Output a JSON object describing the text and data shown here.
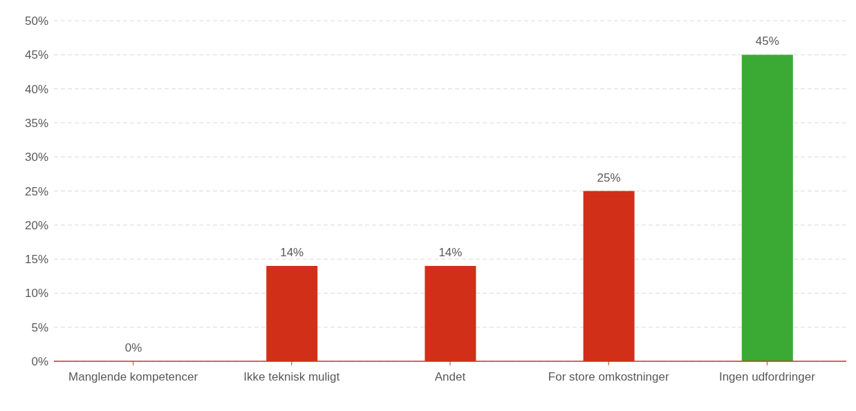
{
  "chart_data": {
    "type": "bar",
    "categories": [
      "Manglende kompetencer",
      "Ikke teknisk muligt",
      "Andet",
      "For store omkostninger",
      "Ingen udfordringer"
    ],
    "values": [
      0,
      14,
      14,
      25,
      45
    ],
    "colors": [
      "#d22f18",
      "#d22f18",
      "#d22f18",
      "#d22f18",
      "#3aaa35"
    ],
    "value_labels": [
      "0%",
      "14%",
      "14%",
      "25%",
      "45%"
    ],
    "ylim": [
      0,
      50
    ],
    "yticks": [
      {
        "value": 0,
        "label": "0%"
      },
      {
        "value": 5,
        "label": "5%"
      },
      {
        "value": 10,
        "label": "10%"
      },
      {
        "value": 15,
        "label": "15%"
      },
      {
        "value": 20,
        "label": "20%"
      },
      {
        "value": 25,
        "label": "25%"
      },
      {
        "value": 30,
        "label": "30%"
      },
      {
        "value": 35,
        "label": "35%"
      },
      {
        "value": 40,
        "label": "40%"
      },
      {
        "value": 45,
        "label": "45%"
      },
      {
        "value": 50,
        "label": "50%"
      }
    ],
    "grid": "y"
  }
}
